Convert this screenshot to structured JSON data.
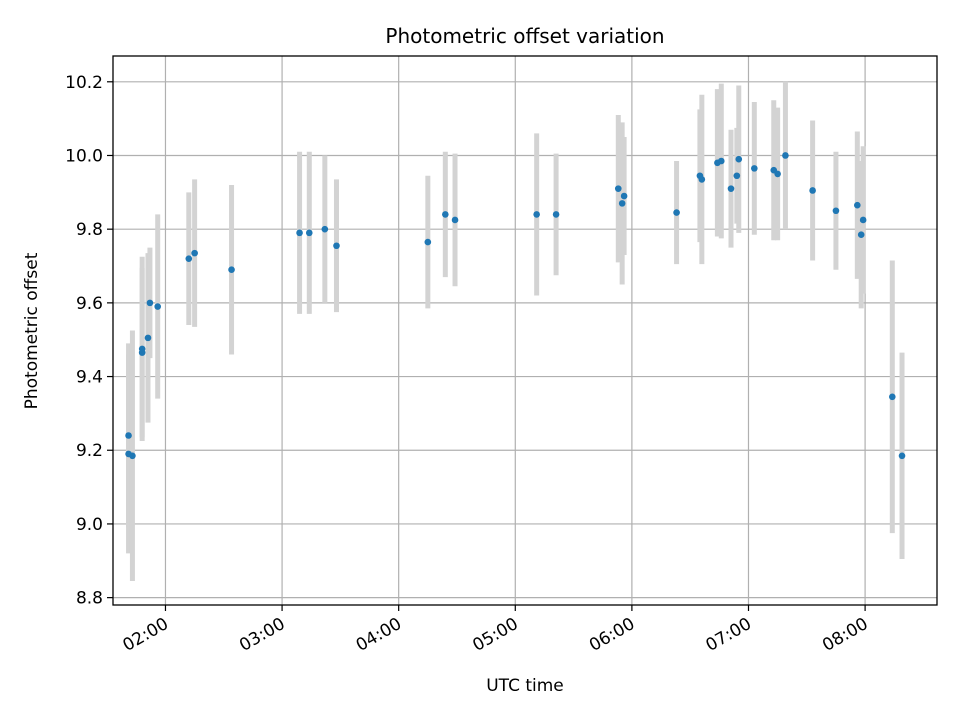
{
  "chart_data": {
    "type": "scatter",
    "title": "Photometric offset variation",
    "xlabel": "UTC time",
    "ylabel": "Photometric offset",
    "xlim": [
      "01:33",
      "08:37"
    ],
    "ylim": [
      8.78,
      10.27
    ],
    "x_ticks": [
      "02:00",
      "03:00",
      "04:00",
      "05:00",
      "06:00",
      "07:00",
      "08:00"
    ],
    "y_ticks": [
      "8.8",
      "9.0",
      "9.2",
      "9.4",
      "9.6",
      "9.8",
      "10.0",
      "10.2"
    ],
    "grid": true,
    "colors": {
      "point": "#1f77b4",
      "errorbar": "#d3d3d3",
      "grid": "#b0b0b0"
    },
    "series": [
      {
        "x": [
          "01:41",
          "01:41",
          "01:43",
          "01:48",
          "01:48",
          "01:51",
          "01:52",
          "01:56",
          "02:12",
          "02:15",
          "02:34",
          "03:09",
          "03:14",
          "03:22",
          "03:28",
          "04:15",
          "04:24",
          "04:29",
          "05:11",
          "05:21",
          "05:53",
          "05:55",
          "05:56",
          "06:23",
          "06:35",
          "06:36",
          "06:44",
          "06:46",
          "06:51",
          "06:54",
          "06:55",
          "07:03",
          "07:13",
          "07:15",
          "07:19",
          "07:33",
          "07:45",
          "07:56",
          "07:58",
          "07:59",
          "08:14",
          "08:19"
        ],
        "y": [
          9.24,
          9.19,
          9.185,
          9.475,
          9.465,
          9.505,
          9.6,
          9.59,
          9.72,
          9.735,
          9.69,
          9.79,
          9.79,
          9.8,
          9.755,
          9.765,
          9.84,
          9.825,
          9.84,
          9.84,
          9.91,
          9.87,
          9.89,
          9.845,
          9.945,
          9.935,
          9.98,
          9.985,
          9.91,
          9.945,
          9.99,
          9.965,
          9.96,
          9.95,
          10.0,
          9.905,
          9.85,
          9.865,
          9.785,
          9.825,
          9.345,
          9.185
        ],
        "yerr": [
          0.25,
          0.27,
          0.34,
          0.25,
          0.23,
          0.23,
          0.15,
          0.25,
          0.18,
          0.2,
          0.23,
          0.22,
          0.22,
          0.2,
          0.18,
          0.18,
          0.17,
          0.18,
          0.22,
          0.165,
          0.2,
          0.22,
          0.16,
          0.14,
          0.18,
          0.23,
          0.2,
          0.21,
          0.16,
          0.13,
          0.2,
          0.18,
          0.19,
          0.18,
          0.2,
          0.19,
          0.16,
          0.2,
          0.2,
          0.2,
          0.37,
          0.28
        ]
      }
    ]
  }
}
